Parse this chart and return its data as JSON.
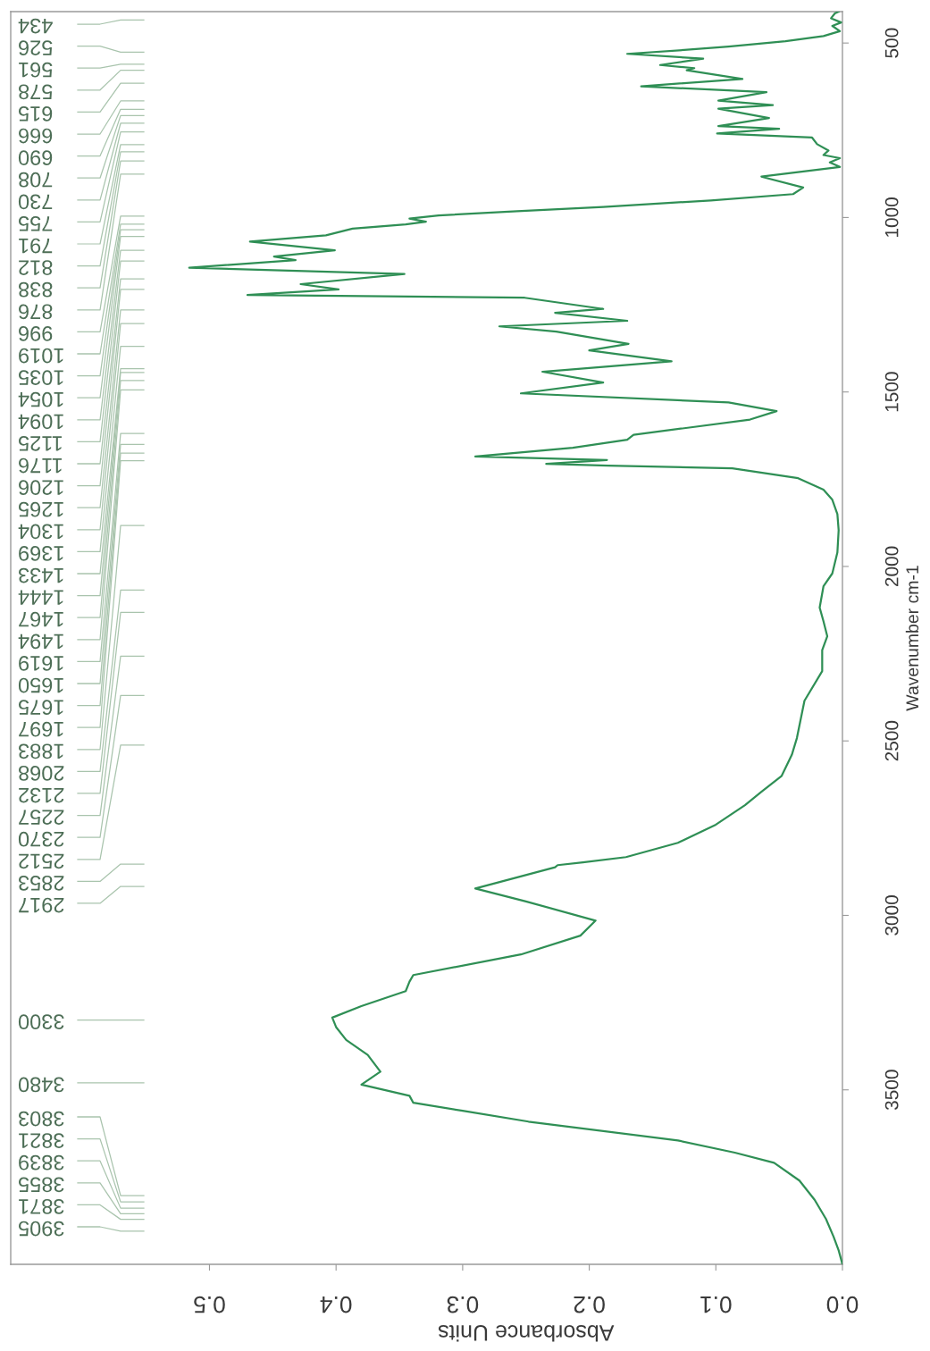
{
  "chart_data": {
    "type": "line",
    "xlabel": "Absorbance Units",
    "ylabel": "Wavenumber cm-1",
    "xlim": [
      0.657,
      0
    ],
    "xticks": [
      {
        "value": 0,
        "label": "0.0"
      },
      0.1,
      0.2,
      0.3,
      0.4,
      0.5
    ],
    "ylim": [
      4000,
      410
    ],
    "yticks": [
      500,
      1000,
      1500,
      2000,
      2500,
      3000,
      3500
    ],
    "series": [
      {
        "color": "#2f8f55",
        "x": [
          0.003,
          0.006,
          0.009,
          0.001,
          0.008,
          0.002,
          0.015,
          0.045,
          0.09,
          0.125,
          0.17,
          0.11,
          0.144,
          0.117,
          0.123,
          0.079,
          0.159,
          0.06,
          0.098,
          0.055,
          0.098,
          0.058,
          0.098,
          0.05,
          0.099,
          0.024,
          0.02,
          0.011,
          0.015,
          0.002,
          0.01,
          0.002,
          0.064,
          0.031,
          0.039,
          0.104,
          0.189,
          0.257,
          0.319,
          0.342,
          0.329,
          0.345,
          0.387,
          0.408,
          0.468,
          0.401,
          0.449,
          0.432,
          0.516,
          0.346,
          0.428,
          0.398,
          0.47,
          0.251,
          0.189,
          0.227,
          0.17,
          0.271,
          0.226,
          0.169,
          0.2,
          0.135,
          0.237,
          0.189,
          0.254,
          0.09,
          0.052,
          0.073,
          0.165,
          0.17,
          0.213,
          0.29,
          0.186,
          0.234,
          0.185,
          0.087,
          0.035,
          0.015,
          0.008,
          0.004,
          0.003,
          0.004,
          0.008,
          0.015,
          0.018,
          0.015,
          0.012,
          0.016,
          0.016,
          0.03,
          0.036,
          0.04,
          0.048,
          0.064,
          0.077,
          0.1,
          0.13,
          0.171,
          0.205,
          0.225,
          0.227,
          0.29,
          0.25,
          0.195,
          0.207,
          0.254,
          0.339,
          0.342,
          0.345,
          0.38,
          0.403,
          0.4,
          0.392,
          0.375,
          0.365,
          0.38,
          0.342,
          0.339,
          0.3,
          0.248,
          0.13,
          0.085,
          0.054,
          0.034,
          0.022,
          0.013,
          0.007,
          0.003,
          0.0
        ],
        "values": [
          410,
          415,
          429,
          441,
          451,
          466,
          480,
          495,
          510,
          520,
          531,
          545,
          563,
          572,
          578,
          603,
          624,
          641,
          665,
          678,
          688,
          715,
          738,
          746,
          759,
          771,
          790,
          808,
          821,
          830,
          842,
          855,
          883,
          914,
          933,
          951,
          970,
          982,
          994,
          1003,
          1012,
          1020,
          1032,
          1051,
          1069,
          1094,
          1112,
          1122,
          1144,
          1162,
          1191,
          1206,
          1222,
          1230,
          1262,
          1273,
          1296,
          1312,
          1327,
          1362,
          1381,
          1412,
          1442,
          1473,
          1504,
          1530,
          1555,
          1579,
          1623,
          1637,
          1660,
          1685,
          1695,
          1706,
          1711,
          1719,
          1747,
          1780,
          1809,
          1850,
          1896,
          1960,
          2020,
          2057,
          2118,
          2157,
          2200,
          2240,
          2300,
          2385,
          2492,
          2540,
          2600,
          2646,
          2684,
          2740,
          2792,
          2833,
          2848,
          2856,
          2862,
          2923,
          2960,
          3015,
          3058,
          3112,
          3171,
          3190,
          3217,
          3260,
          3293,
          3320,
          3357,
          3400,
          3448,
          3485,
          3517,
          3537,
          3560,
          3591,
          3645,
          3680,
          3709,
          3760,
          3815,
          3870,
          3921,
          3960,
          4000
        ]
      }
    ],
    "annotations": [
      "434",
      "526",
      "561",
      "578",
      "615",
      "666",
      "690",
      "708",
      "730",
      "755",
      "791",
      "812",
      "838",
      "876",
      "996",
      "1019",
      "1035",
      "1054",
      "1094",
      "1125",
      "1176",
      "1206",
      "1265",
      "1304",
      "1369",
      "1433",
      "1444",
      "1467",
      "1494",
      "1619",
      "1650",
      "1675",
      "1697",
      "1883",
      "2068",
      "2132",
      "2257",
      "2370",
      "2512",
      "2853",
      "2917",
      "3300",
      "3480",
      "3803",
      "3821",
      "3839",
      "3855",
      "3871",
      "3905"
    ]
  }
}
